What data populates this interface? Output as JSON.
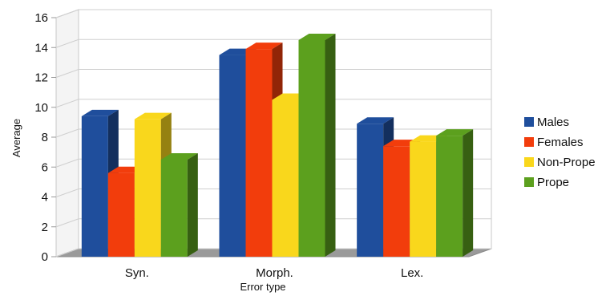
{
  "chart_data": {
    "type": "bar",
    "style": "3d-clustered-column",
    "title": "",
    "xlabel": "Error type",
    "ylabel": "Average",
    "ylim": [
      0,
      16
    ],
    "yticks": [
      0,
      2,
      4,
      6,
      8,
      10,
      12,
      14,
      16
    ],
    "grid": true,
    "legend_position": "right",
    "categories": [
      "Syn.",
      "Morph.",
      "Lex."
    ],
    "series": [
      {
        "name": "Males",
        "color": "#1f4e9c",
        "values": [
          9.4,
          13.5,
          8.9
        ]
      },
      {
        "name": "Females",
        "color": "#f23d0c",
        "values": [
          5.6,
          13.9,
          7.4
        ]
      },
      {
        "name": "Non-Prope",
        "color": "#f9d71c",
        "values": [
          9.2,
          10.5,
          7.7
        ]
      },
      {
        "name": "Prope",
        "color": "#5ca01e",
        "values": [
          6.5,
          14.5,
          8.1
        ]
      }
    ]
  }
}
